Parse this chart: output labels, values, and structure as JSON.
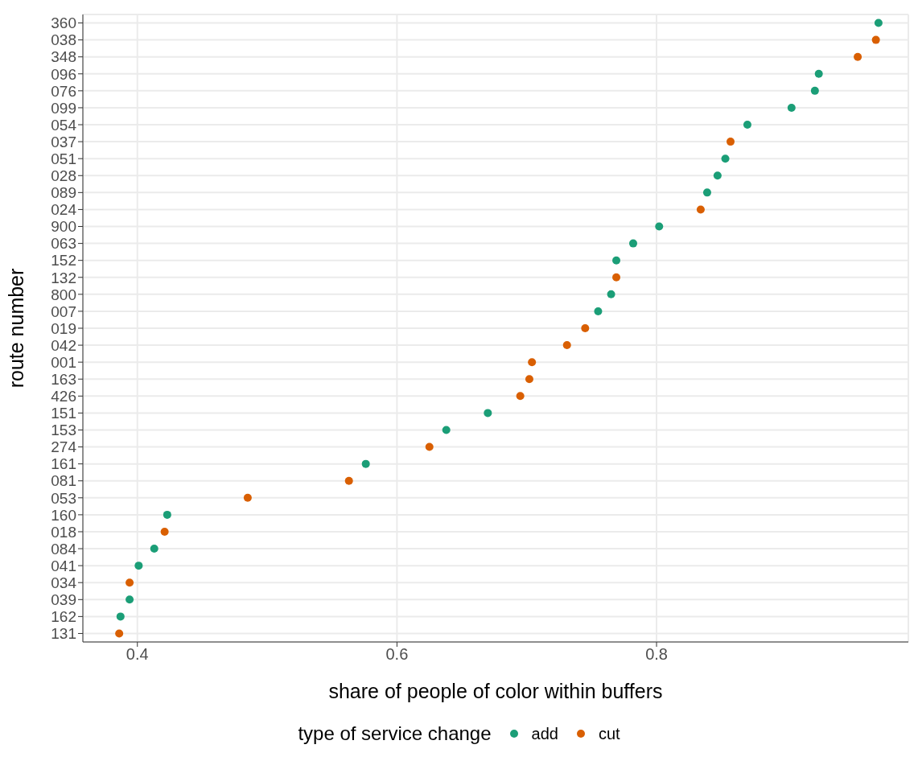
{
  "chart_data": {
    "type": "scatter",
    "orientation": "horizontal",
    "xlabel": "share of people of color within buffers",
    "ylabel": "route number",
    "legend_title": "type of service change",
    "legend": "bottom",
    "marker": "circle",
    "grid": true,
    "categories": [
      "360",
      "038",
      "348",
      "096",
      "076",
      "099",
      "054",
      "037",
      "051",
      "028",
      "089",
      "024",
      "900",
      "063",
      "152",
      "132",
      "800",
      "007",
      "019",
      "042",
      "001",
      "163",
      "426",
      "151",
      "153",
      "274",
      "161",
      "081",
      "053",
      "160",
      "018",
      "084",
      "041",
      "034",
      "039",
      "162",
      "131"
    ],
    "series": [
      {
        "name": "add",
        "color": "#1b9e77",
        "values": [
          0.971,
          null,
          null,
          0.925,
          0.922,
          0.904,
          0.87,
          null,
          0.853,
          0.847,
          0.839,
          null,
          0.802,
          0.782,
          0.769,
          null,
          0.765,
          0.755,
          null,
          null,
          null,
          null,
          null,
          0.67,
          0.638,
          null,
          0.576,
          null,
          null,
          0.423,
          null,
          0.413,
          0.401,
          null,
          0.394,
          0.387,
          null
        ]
      },
      {
        "name": "cut",
        "color": "#d95f02",
        "values": [
          null,
          0.969,
          0.955,
          null,
          null,
          null,
          null,
          0.857,
          null,
          null,
          null,
          0.834,
          null,
          null,
          null,
          0.769,
          null,
          null,
          0.745,
          0.731,
          0.704,
          0.702,
          0.695,
          null,
          null,
          0.625,
          null,
          0.563,
          0.485,
          null,
          0.421,
          null,
          null,
          0.394,
          null,
          null,
          0.386
        ]
      }
    ],
    "xlim": [
      0.358,
      0.994
    ],
    "xticks": [
      0.4,
      0.6,
      0.8
    ]
  }
}
